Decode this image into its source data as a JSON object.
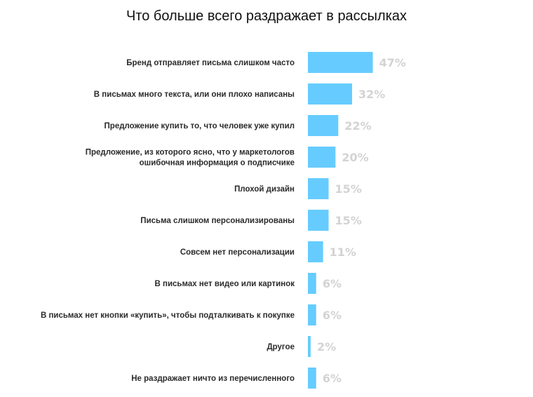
{
  "chart_data": {
    "type": "bar",
    "orientation": "horizontal",
    "title": "Что больше всего раздражает в рассылках",
    "categories": [
      [
        "Бренд отправляет письма слишком часто"
      ],
      [
        "В письмах много текста, или они плохо написаны"
      ],
      [
        "Предложение купить то, что человек уже купил"
      ],
      [
        "Предложение, из которого ясно, что у маркетологов",
        "ошибочная информация о подписчике"
      ],
      [
        "Плохой дизайн"
      ],
      [
        "Письма слишком персонализированы"
      ],
      [
        "Совсем нет персонализации"
      ],
      [
        "В письмах нет видео или картинок"
      ],
      [
        "В письмах нет кнопки «купить», чтобы подталкивать к покупке"
      ],
      [
        "Другое"
      ],
      [
        "Не раздражает ничто из перечисленного"
      ]
    ],
    "values": [
      47,
      32,
      22,
      20,
      15,
      15,
      11,
      6,
      6,
      2,
      6
    ],
    "value_labels": [
      "47%",
      "32%",
      "22%",
      "20%",
      "15%",
      "15%",
      "11%",
      "6%",
      "6%",
      "2%",
      "6%"
    ],
    "unit": "%",
    "xlim": [
      0,
      100
    ],
    "grid": false,
    "legend": "none",
    "colors": {
      "bar": "#66ccff",
      "value_text": "#d3d3d3",
      "label_text": "#2b2b2b"
    }
  }
}
